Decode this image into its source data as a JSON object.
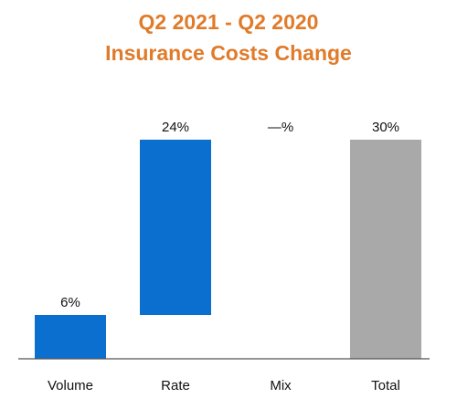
{
  "chart_data": {
    "type": "waterfall",
    "title_lines": [
      "Q2 2021 - Q2 2020",
      "Insurance Costs Change"
    ],
    "categories": [
      "Volume",
      "Rate",
      "Mix",
      "Total"
    ],
    "values": [
      6,
      24,
      0,
      30
    ],
    "data_labels": [
      "6%",
      "24%",
      "—%",
      "30%"
    ],
    "bar_kinds": [
      "increment",
      "increment",
      "increment",
      "total"
    ],
    "colors": {
      "increment": "#0a6fcf",
      "total": "#a9a9a9",
      "title": "#e07b2a"
    },
    "ylim": [
      0,
      30
    ],
    "grid": false,
    "legend": "none"
  }
}
